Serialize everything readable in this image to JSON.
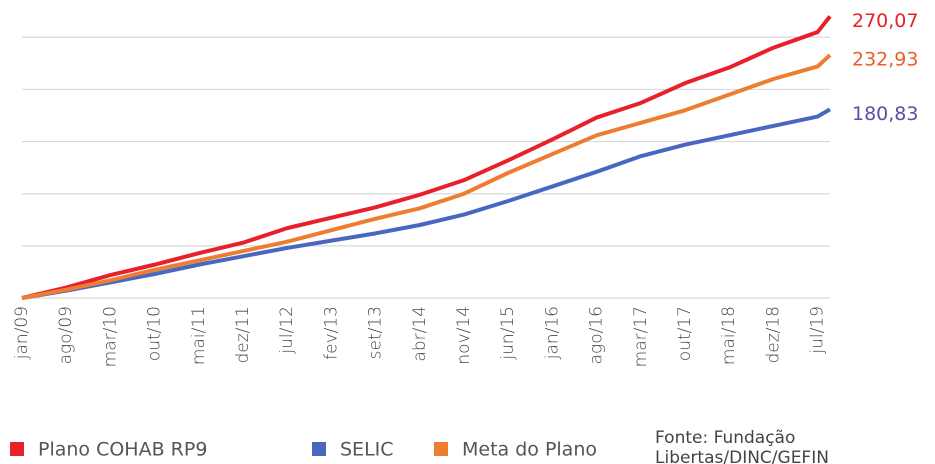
{
  "chart_data": {
    "type": "line",
    "categories": [
      "jan/09",
      "ago/09",
      "mar/10",
      "out/10",
      "mai/11",
      "dez/11",
      "jul/12",
      "fev/13",
      "set/13",
      "abr/14",
      "nov/14",
      "jun/15",
      "jan/16",
      "ago/16",
      "mar/17",
      "out/17",
      "mai/18",
      "dez/18",
      "jul/19",
      null
    ],
    "series": [
      {
        "name": "Plano COHAB RP9",
        "color": "#e8202a",
        "label_color": "#e8202a",
        "values": [
          0,
          10,
          22,
          32,
          43,
          53,
          67,
          77,
          87,
          99,
          113,
          132,
          152,
          173,
          187,
          206,
          221,
          240,
          255,
          270.07
        ],
        "value_labels": [
          null,
          null,
          null,
          null,
          null,
          null,
          null,
          null,
          null,
          null,
          null,
          null,
          null,
          null,
          null,
          null,
          null,
          null,
          null,
          "270,07"
        ]
      },
      {
        "name": "SELIC",
        "color": "#4a67c0",
        "label_color": "#5b4ea6",
        "values": [
          0,
          7,
          15,
          23,
          32,
          40,
          48,
          55,
          62,
          70,
          80,
          93,
          107,
          121,
          136,
          147,
          156,
          165,
          174,
          180.83
        ],
        "value_labels": [
          null,
          null,
          null,
          null,
          null,
          null,
          null,
          null,
          null,
          null,
          null,
          null,
          null,
          null,
          null,
          null,
          null,
          null,
          null,
          "180,83"
        ]
      },
      {
        "name": "Meta do Plano",
        "color": "#ed7d31",
        "label_color": "#e8602a",
        "values": [
          0,
          8,
          17,
          27,
          36,
          45,
          54,
          65,
          76,
          86,
          100,
          120,
          138,
          156,
          168,
          180,
          195,
          210,
          222,
          232.93
        ],
        "value_labels": [
          null,
          null,
          null,
          null,
          null,
          null,
          null,
          null,
          null,
          null,
          null,
          null,
          null,
          null,
          null,
          null,
          null,
          null,
          null,
          "232,93"
        ]
      }
    ],
    "ylim": [
      0,
      280
    ],
    "yticks": [
      0,
      50,
      100,
      150,
      200,
      250
    ],
    "grid": true,
    "source": "Fonte: Fundação Libertas/DINC/GEFIN"
  }
}
